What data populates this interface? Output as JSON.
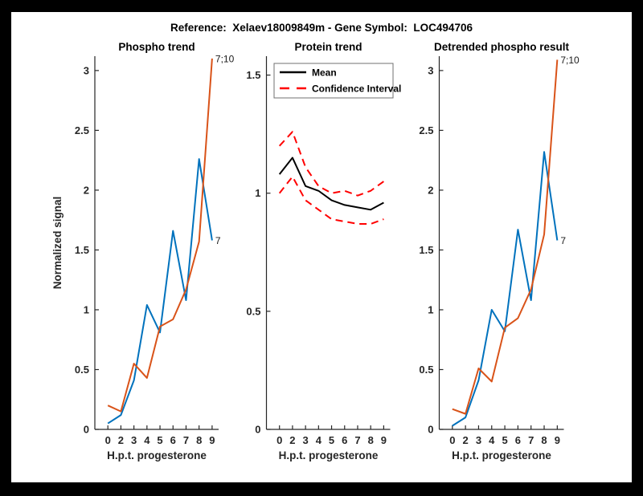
{
  "figure": {
    "title": "Reference:  Xelaev18009849m - Gene Symbol:  LOC494706"
  },
  "colors": {
    "background": "#000000",
    "canvas": "#ffffff",
    "blue": "#0072BD",
    "orange": "#D95319",
    "ci_red": "#FF0000",
    "black": "#000000",
    "axis": "#262626"
  },
  "chart_data": [
    {
      "type": "line",
      "title": "Phospho trend",
      "xlabel": "H.p.t. progesterone",
      "ylabel": "Normalized signal",
      "x_ticklabels": [
        "0",
        "2",
        "3",
        "4",
        "5",
        "6",
        "7",
        "8",
        "9"
      ],
      "yticks": [
        0,
        0.5,
        1,
        1.5,
        2,
        2.5,
        3
      ],
      "ytick_labels": [
        "0",
        "0.5",
        "1",
        "1.5",
        "2",
        "2.5",
        "3"
      ],
      "ylim": [
        0,
        3.12
      ],
      "grid": false,
      "legend": null,
      "series": [
        {
          "name": "7",
          "color_key": "blue",
          "style": "solid",
          "end_label": "7",
          "values": [
            0.05,
            0.12,
            0.41,
            1.04,
            0.81,
            1.66,
            1.08,
            2.26,
            1.58
          ]
        },
        {
          "name": "7;10",
          "color_key": "orange",
          "style": "solid",
          "end_label": "7;10",
          "values": [
            0.2,
            0.15,
            0.55,
            0.43,
            0.86,
            0.92,
            1.17,
            1.57,
            3.1
          ]
        }
      ]
    },
    {
      "type": "line",
      "title": "Protein trend",
      "xlabel": "H.p.t. progesterone",
      "ylabel": "",
      "x_ticklabels": [
        "0",
        "2",
        "3",
        "4",
        "5",
        "6",
        "7",
        "8",
        "9"
      ],
      "yticks": [
        0,
        0.5,
        1,
        1.5
      ],
      "ytick_labels": [
        "0",
        "0.5",
        "1",
        "1.5"
      ],
      "ylim": [
        0,
        1.58
      ],
      "grid": false,
      "legend": {
        "position": "northwest",
        "items": [
          {
            "label": "Mean",
            "color_key": "black",
            "style": "solid"
          },
          {
            "label": "Confidence Interval",
            "color_key": "ci_red",
            "style": "dashed"
          }
        ]
      },
      "series": [
        {
          "name": "Mean",
          "color_key": "black",
          "style": "solid",
          "end_label": null,
          "values": [
            1.08,
            1.15,
            1.03,
            1.01,
            0.97,
            0.95,
            0.94,
            0.93,
            0.96
          ]
        },
        {
          "name": "Confidence Interval upper",
          "color_key": "ci_red",
          "style": "dashed",
          "end_label": null,
          "values": [
            1.2,
            1.26,
            1.11,
            1.03,
            1.0,
            1.01,
            0.99,
            1.01,
            1.05
          ]
        },
        {
          "name": "Confidence Interval lower",
          "color_key": "ci_red",
          "style": "dashed",
          "end_label": null,
          "values": [
            1.0,
            1.07,
            0.97,
            0.93,
            0.89,
            0.88,
            0.87,
            0.87,
            0.89
          ]
        }
      ]
    },
    {
      "type": "line",
      "title": "Detrended phospho result",
      "xlabel": "H.p.t. progesterone",
      "ylabel": "",
      "x_ticklabels": [
        "0",
        "2",
        "3",
        "4",
        "5",
        "6",
        "7",
        "8",
        "9"
      ],
      "yticks": [
        0,
        0.5,
        1,
        1.5,
        2,
        2.5,
        3
      ],
      "ytick_labels": [
        "0",
        "0.5",
        "1",
        "1.5",
        "2",
        "2.5",
        "3"
      ],
      "ylim": [
        0,
        3.12
      ],
      "grid": false,
      "legend": null,
      "series": [
        {
          "name": "7",
          "color_key": "blue",
          "style": "solid",
          "end_label": "7",
          "values": [
            0.03,
            0.1,
            0.41,
            1.0,
            0.82,
            1.67,
            1.08,
            2.32,
            1.58
          ]
        },
        {
          "name": "7;10",
          "color_key": "orange",
          "style": "solid",
          "end_label": "7;10",
          "values": [
            0.17,
            0.13,
            0.51,
            0.4,
            0.85,
            0.93,
            1.17,
            1.63,
            3.09
          ]
        }
      ]
    }
  ]
}
